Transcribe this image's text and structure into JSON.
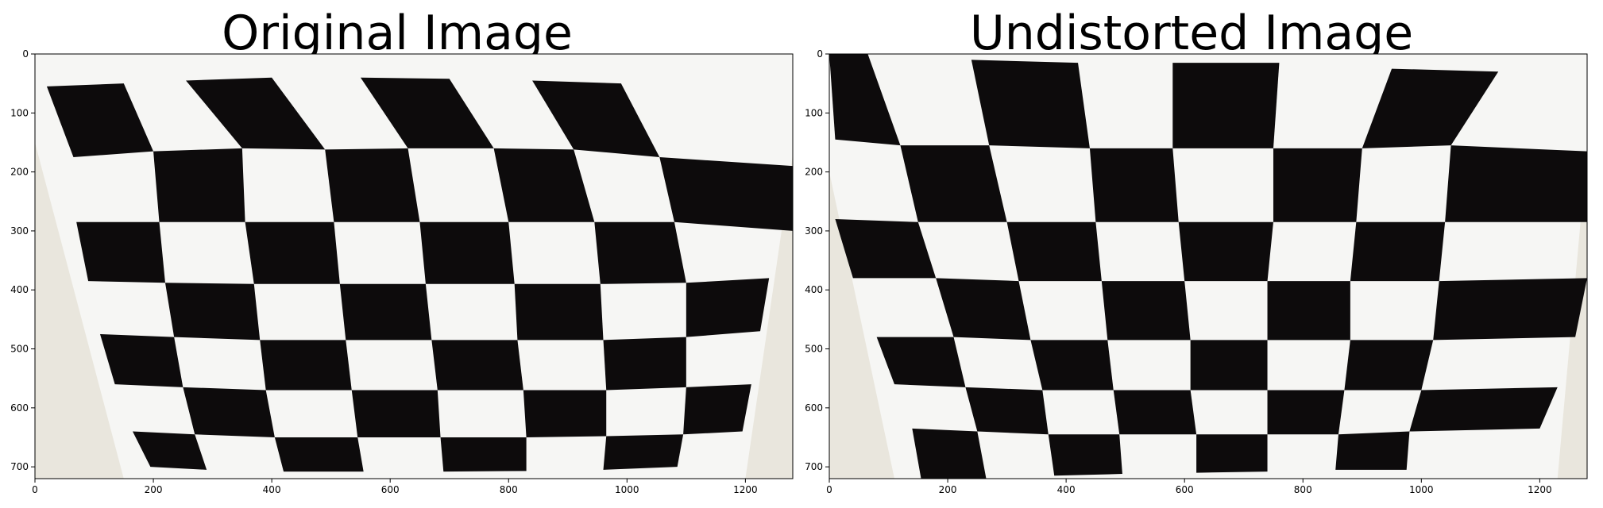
{
  "panels": [
    {
      "title": "Original Image",
      "x_ticks": [
        "0",
        "200",
        "400",
        "600",
        "800",
        "1000",
        "1200"
      ],
      "y_ticks": [
        "0",
        "100",
        "200",
        "300",
        "400",
        "500",
        "600",
        "700"
      ]
    },
    {
      "title": "Undistorted Image",
      "x_ticks": [
        "0",
        "200",
        "400",
        "600",
        "800",
        "1000",
        "1200"
      ],
      "y_ticks": [
        "0",
        "100",
        "200",
        "300",
        "400",
        "500",
        "600",
        "700"
      ]
    }
  ],
  "colors": {
    "wall": "#e9e6dd",
    "paper": "#f6f6f4",
    "square": "#0d0b0c",
    "axis": "#000000"
  }
}
